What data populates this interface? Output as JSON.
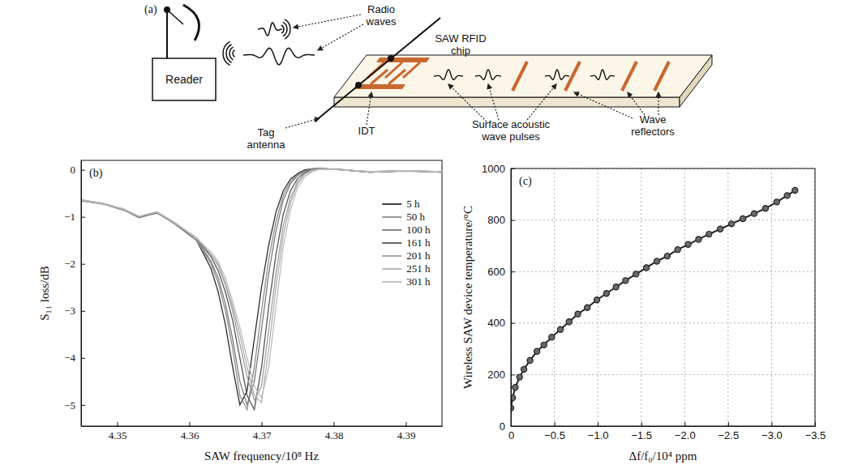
{
  "diagram": {
    "label": "(a)",
    "reader": "Reader",
    "radio_waves": "Radio waves",
    "chip": "SAW RFID chip",
    "tag_antenna": "Tag antenna",
    "idt": "IDT",
    "pulses": "Surface acoustic wave pulses",
    "reflectors": "Wave reflectors"
  },
  "chart_data": [
    {
      "type": "line",
      "title": "(b)",
      "xlabel": "SAW frequency/10⁸ Hz",
      "ylabel": "S₁₁ loss/dB",
      "x": [
        4.345,
        4.348,
        4.351,
        4.353,
        4.3555,
        4.358,
        4.361,
        4.363,
        4.364,
        4.365,
        4.366,
        4.367,
        4.368,
        4.369,
        4.37,
        4.371,
        4.372,
        4.373,
        4.374,
        4.375,
        4.376,
        4.377,
        4.378,
        4.381,
        4.385,
        4.39,
        4.395
      ],
      "series": [
        {
          "name": "5 h",
          "color": "#2b2b2b",
          "values": [
            -0.65,
            -0.72,
            -0.85,
            -1.0,
            -0.9,
            -1.15,
            -1.5,
            -2.1,
            -2.6,
            -3.3,
            -4.2,
            -5.0,
            -4.7,
            -3.6,
            -2.5,
            -1.6,
            -0.9,
            -0.45,
            -0.2,
            -0.08,
            0.0,
            0.02,
            0.03,
            0.0,
            -0.05,
            -0.02,
            -0.05
          ]
        },
        {
          "name": "50 h",
          "color": "#8c8c8c",
          "values": [
            -0.66,
            -0.73,
            -0.86,
            -1.02,
            -0.92,
            -1.15,
            -1.5,
            -2.0,
            -2.4,
            -3.0,
            -3.8,
            -4.8,
            -5.1,
            -4.2,
            -3.0,
            -1.9,
            -1.1,
            -0.55,
            -0.25,
            -0.1,
            -0.02,
            0.02,
            0.03,
            0.0,
            -0.04,
            -0.02,
            -0.04
          ]
        },
        {
          "name": "100 h",
          "color": "#7a7a7a",
          "values": [
            -0.64,
            -0.71,
            -0.84,
            -0.99,
            -0.9,
            -1.13,
            -1.45,
            -1.95,
            -2.3,
            -2.85,
            -3.6,
            -4.5,
            -5.0,
            -4.5,
            -3.4,
            -2.2,
            -1.3,
            -0.65,
            -0.3,
            -0.12,
            -0.03,
            0.01,
            0.03,
            0.01,
            -0.05,
            -0.03,
            -0.05
          ]
        },
        {
          "name": "161 h",
          "color": "#555555",
          "values": [
            -0.66,
            -0.72,
            -0.86,
            -1.01,
            -0.91,
            -1.14,
            -1.45,
            -1.85,
            -2.15,
            -2.6,
            -3.2,
            -4.0,
            -4.8,
            -5.1,
            -4.2,
            -2.9,
            -1.8,
            -0.95,
            -0.45,
            -0.18,
            -0.06,
            0.0,
            0.02,
            0.0,
            -0.05,
            -0.02,
            -0.05
          ]
        },
        {
          "name": "201 h",
          "color": "#a0a0a0",
          "values": [
            -0.65,
            -0.71,
            -0.85,
            -1.0,
            -0.9,
            -1.13,
            -1.45,
            -1.8,
            -2.05,
            -2.45,
            -3.0,
            -3.7,
            -4.4,
            -4.9,
            -4.6,
            -3.4,
            -2.2,
            -1.2,
            -0.6,
            -0.25,
            -0.08,
            0.0,
            0.02,
            0.01,
            -0.04,
            -0.02,
            -0.04
          ]
        },
        {
          "name": "251 h",
          "color": "#b0b0b0",
          "values": [
            -0.64,
            -0.72,
            -0.85,
            -1.0,
            -0.9,
            -1.14,
            -1.45,
            -1.8,
            -2.0,
            -2.4,
            -2.9,
            -3.5,
            -4.2,
            -4.8,
            -4.95,
            -3.8,
            -2.5,
            -1.4,
            -0.7,
            -0.3,
            -0.1,
            -0.02,
            0.02,
            0.0,
            -0.05,
            -0.02,
            -0.05
          ]
        },
        {
          "name": "301 h",
          "color": "#bdbdbd",
          "values": [
            -0.65,
            -0.72,
            -0.84,
            -0.99,
            -0.89,
            -1.12,
            -1.45,
            -1.75,
            -1.95,
            -2.3,
            -2.8,
            -3.35,
            -4.0,
            -4.6,
            -4.85,
            -4.2,
            -2.9,
            -1.65,
            -0.85,
            -0.38,
            -0.15,
            -0.04,
            0.01,
            0.0,
            -0.04,
            -0.02,
            -0.04
          ]
        }
      ],
      "xlim": [
        4.345,
        4.395
      ],
      "xticks": [
        4.35,
        4.36,
        4.37,
        4.38,
        4.39
      ],
      "ylim": [
        -5.45,
        0.2
      ],
      "yticks": [
        0,
        {
          "value": -1,
          "label": "−1"
        },
        {
          "value": -2,
          "label": "−2"
        },
        {
          "value": -3,
          "label": "−3"
        },
        {
          "value": -4,
          "label": "−4"
        },
        {
          "value": -5,
          "label": "−5"
        }
      ],
      "legend": "upper right",
      "grid": false
    },
    {
      "type": "line",
      "title": "(c)",
      "xlabel": "Δf/f₀/10⁴ ppm",
      "ylabel": "Wireless SAW device temperature/°C",
      "x": [
        0,
        -0.02,
        -0.05,
        -0.1,
        -0.15,
        -0.22,
        -0.3,
        -0.38,
        -0.47,
        -0.57,
        -0.67,
        -0.77,
        -0.88,
        -0.99,
        -1.1,
        -1.21,
        -1.32,
        -1.44,
        -1.56,
        -1.68,
        -1.8,
        -1.92,
        -2.04,
        -2.16,
        -2.28,
        -2.41,
        -2.54,
        -2.67,
        -2.8,
        -2.93,
        -3.06,
        -3.18,
        -3.27
      ],
      "values": [
        70,
        110,
        150,
        190,
        220,
        255,
        290,
        315,
        345,
        375,
        405,
        435,
        460,
        490,
        515,
        540,
        565,
        590,
        615,
        640,
        660,
        685,
        705,
        725,
        745,
        765,
        785,
        805,
        825,
        845,
        870,
        895,
        915
      ],
      "color": "#222222",
      "marker": "circle",
      "xlim": [
        0,
        -3.5
      ],
      "xticks": [
        0,
        {
          "value": -0.5,
          "label": "−0.5"
        },
        {
          "value": -1,
          "label": "−1.0"
        },
        {
          "value": -1.5,
          "label": "−1.5"
        },
        {
          "value": -2,
          "label": "−2.0"
        },
        {
          "value": -2.5,
          "label": "−2.5"
        },
        {
          "value": -3,
          "label": "−3.0"
        },
        {
          "value": -3.5,
          "label": "−3.5"
        }
      ],
      "ylim": [
        0,
        1000
      ],
      "yticks": [
        0,
        200,
        400,
        600,
        800,
        1000
      ],
      "grid": true
    }
  ]
}
